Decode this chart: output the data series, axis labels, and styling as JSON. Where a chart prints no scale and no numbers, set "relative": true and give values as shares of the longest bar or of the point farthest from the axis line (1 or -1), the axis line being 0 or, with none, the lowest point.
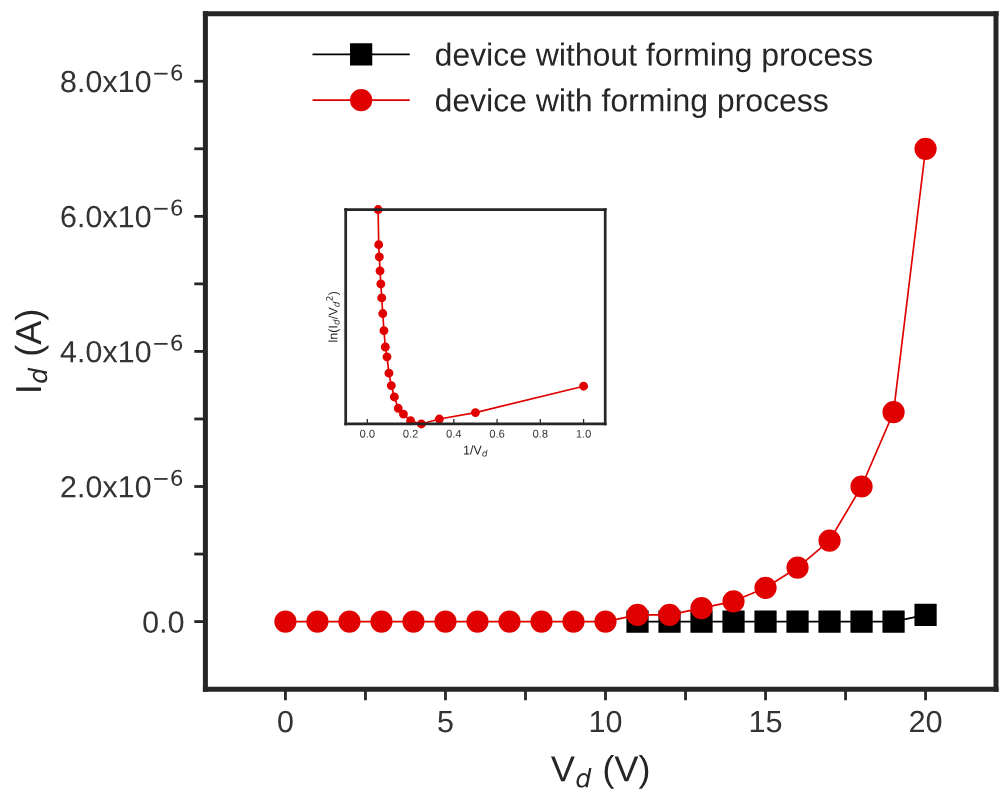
{
  "chart_data": [
    {
      "type": "line",
      "xlabel": "V$_{d}$ (V)",
      "ylabel": "I$_{d}$ (A)",
      "x": [
        0,
        1,
        2,
        3,
        4,
        5,
        6,
        7,
        8,
        9,
        10,
        11,
        12,
        13,
        14,
        15,
        16,
        17,
        18,
        19,
        20
      ],
      "series": [
        {
          "name": "device without forming process",
          "color": "#000000",
          "marker": "square",
          "values": [
            null,
            null,
            null,
            null,
            null,
            null,
            null,
            null,
            null,
            null,
            null,
            0,
            0,
            0,
            0,
            0,
            0,
            0,
            0,
            0,
            1e-07
          ]
        },
        {
          "name": "device with forming process",
          "color": "#e00000",
          "marker": "circle",
          "values": [
            0,
            0,
            0,
            0,
            0,
            0,
            0,
            0,
            0,
            0,
            0,
            1e-07,
            1e-07,
            2e-07,
            3e-07,
            5e-07,
            8e-07,
            1.2e-06,
            2e-06,
            3.1e-06,
            7e-06
          ]
        }
      ],
      "xlim": [
        -2.5,
        22.2
      ],
      "xticks": [
        0,
        {
          "value": 2.5,
          "label": null
        },
        5,
        {
          "value": 7.5,
          "label": null
        },
        10,
        {
          "value": 12.5,
          "label": null
        },
        15,
        {
          "value": 17.5,
          "label": null
        },
        20
      ],
      "ylim": [
        -1e-06,
        9e-06
      ],
      "yticks": [
        {
          "value": 0,
          "label": "0.0"
        },
        {
          "value": 1e-06,
          "label": null
        },
        {
          "value": 2e-06,
          "label": "2.0x10$^{−6}$"
        },
        {
          "value": 3e-06,
          "label": null
        },
        {
          "value": 4e-06,
          "label": "4.0x10$^{−6}$"
        },
        {
          "value": 5e-06,
          "label": null
        },
        {
          "value": 6e-06,
          "label": "6.0x10$^{−6}$"
        },
        {
          "value": 7e-06,
          "label": null
        },
        {
          "value": 8e-06,
          "label": "8.0x10$^{−6}$"
        }
      ],
      "legend": "top left",
      "grid": false,
      "line_style": "solid"
    },
    {
      "type": "line",
      "xlabel": "1/V$_{d}$",
      "ylabel": "ln(I$_{d}$/V$_{d}$$^{2}$)",
      "relative": true,
      "x": [
        0.05,
        0.0526,
        0.0556,
        0.0588,
        0.0625,
        0.0667,
        0.0714,
        0.0769,
        0.0833,
        0.0909,
        0.1,
        0.111,
        0.125,
        0.143,
        0.167,
        0.2,
        0.25,
        0.333,
        0.5,
        1.0
      ],
      "series": [
        {
          "color": "#e00000",
          "marker": "circle",
          "values": [
            1,
            0.836,
            0.779,
            0.714,
            0.653,
            0.588,
            0.515,
            0.435,
            0.359,
            0.313,
            0.237,
            0.179,
            0.126,
            0.073,
            0.046,
            0.015,
            0,
            0.023,
            0.053,
            0.176
          ]
        }
      ],
      "xlim": [
        -0.1,
        1.1
      ],
      "xticks": [
        {
          "value": 0.0,
          "label": "0.0"
        },
        {
          "value": 0.2,
          "label": "0.2"
        },
        {
          "value": 0.4,
          "label": "0.4"
        },
        {
          "value": 0.6,
          "label": "0.6"
        },
        {
          "value": 0.8,
          "label": "0.8"
        },
        {
          "value": 1.0,
          "label": "1.0"
        }
      ],
      "grid": false,
      "line_style": "solid"
    }
  ]
}
